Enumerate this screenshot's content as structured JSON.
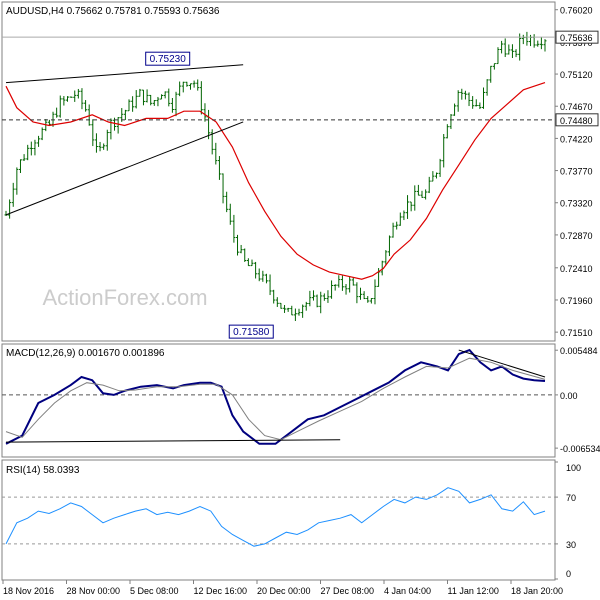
{
  "chart_data": [
    {
      "type": "candlestick",
      "panel": "price",
      "title": "AUDUSD,H4  0.75662 0.75781 0.75593 0.75636",
      "watermark": "ActionForex.com",
      "ylim": [
        0.714,
        0.761
      ],
      "y_ticks": [
        {
          "value": 0.7602,
          "label": "0.76020"
        },
        {
          "value": 0.7557,
          "label": "0.75570"
        },
        {
          "value": 0.7512,
          "label": "0.75120"
        },
        {
          "value": 0.7467,
          "label": "0.74670"
        },
        {
          "value": 0.7422,
          "label": "0.74220"
        },
        {
          "value": 0.7377,
          "label": "0.73770"
        },
        {
          "value": 0.7332,
          "label": "0.73320"
        },
        {
          "value": 0.7287,
          "label": "0.72870"
        },
        {
          "value": 0.7241,
          "label": "0.72410"
        },
        {
          "value": 0.7196,
          "label": "0.71960"
        },
        {
          "value": 0.7151,
          "label": "0.71510"
        }
      ],
      "current_price": {
        "value": 0.75636,
        "label": "0.75636"
      },
      "hline": {
        "value": 0.7448,
        "label": "0.74480",
        "style": "dashed"
      },
      "annotations": [
        {
          "label": "0.75230",
          "x": 0.3,
          "y": 0.7523
        },
        {
          "label": "0.71580",
          "x": 0.455,
          "y": 0.7158
        }
      ],
      "close_path": [
        [
          0.0,
          0.7315
        ],
        [
          0.02,
          0.738
        ],
        [
          0.05,
          0.742
        ],
        [
          0.08,
          0.744
        ],
        [
          0.1,
          0.747
        ],
        [
          0.13,
          0.7485
        ],
        [
          0.15,
          0.746
        ],
        [
          0.17,
          0.7395
        ],
        [
          0.19,
          0.744
        ],
        [
          0.22,
          0.746
        ],
        [
          0.25,
          0.7485
        ],
        [
          0.27,
          0.747
        ],
        [
          0.29,
          0.749
        ],
        [
          0.31,
          0.747
        ],
        [
          0.33,
          0.7505
        ],
        [
          0.35,
          0.75
        ],
        [
          0.37,
          0.745
        ],
        [
          0.385,
          0.74
        ],
        [
          0.4,
          0.735
        ],
        [
          0.42,
          0.729
        ],
        [
          0.44,
          0.725
        ],
        [
          0.47,
          0.723
        ],
        [
          0.5,
          0.72
        ],
        [
          0.52,
          0.7175
        ],
        [
          0.55,
          0.719
        ],
        [
          0.58,
          0.7195
        ],
        [
          0.61,
          0.7215
        ],
        [
          0.64,
          0.722
        ],
        [
          0.67,
          0.7185
        ],
        [
          0.69,
          0.723
        ],
        [
          0.71,
          0.728
        ],
        [
          0.73,
          0.732
        ],
        [
          0.76,
          0.734
        ],
        [
          0.78,
          0.7345
        ],
        [
          0.8,
          0.738
        ],
        [
          0.82,
          0.745
        ],
        [
          0.84,
          0.749
        ],
        [
          0.86,
          0.7475
        ],
        [
          0.88,
          0.7465
        ],
        [
          0.9,
          0.752
        ],
        [
          0.92,
          0.7555
        ],
        [
          0.94,
          0.7535
        ],
        [
          0.96,
          0.7565
        ],
        [
          0.98,
          0.756
        ],
        [
          1.0,
          0.7563
        ]
      ],
      "moving_average": {
        "color": "#dd0000",
        "points": [
          [
            0.0,
            0.7495
          ],
          [
            0.02,
            0.7465
          ],
          [
            0.05,
            0.7445
          ],
          [
            0.08,
            0.744
          ],
          [
            0.12,
            0.7445
          ],
          [
            0.16,
            0.7455
          ],
          [
            0.19,
            0.7445
          ],
          [
            0.22,
            0.744
          ],
          [
            0.26,
            0.745
          ],
          [
            0.3,
            0.745
          ],
          [
            0.33,
            0.746
          ],
          [
            0.36,
            0.746
          ],
          [
            0.39,
            0.7445
          ],
          [
            0.42,
            0.741
          ],
          [
            0.45,
            0.736
          ],
          [
            0.48,
            0.732
          ],
          [
            0.51,
            0.7285
          ],
          [
            0.54,
            0.726
          ],
          [
            0.57,
            0.7245
          ],
          [
            0.6,
            0.7235
          ],
          [
            0.63,
            0.723
          ],
          [
            0.66,
            0.7225
          ],
          [
            0.68,
            0.723
          ],
          [
            0.7,
            0.724
          ],
          [
            0.72,
            0.726
          ],
          [
            0.75,
            0.728
          ],
          [
            0.78,
            0.731
          ],
          [
            0.81,
            0.735
          ],
          [
            0.84,
            0.7385
          ],
          [
            0.87,
            0.742
          ],
          [
            0.9,
            0.745
          ],
          [
            0.93,
            0.747
          ],
          [
            0.96,
            0.749
          ],
          [
            1.0,
            0.75
          ]
        ]
      },
      "trendlines": [
        {
          "from": [
            0.0,
            0.75
          ],
          "to": [
            0.44,
            0.7525
          ]
        },
        {
          "from": [
            0.0,
            0.7315
          ],
          "to": [
            0.44,
            0.7445
          ]
        }
      ]
    },
    {
      "type": "line",
      "panel": "macd",
      "title": "MACD(12,26,9) 0.001670 0.001896",
      "ylim": [
        -0.0075,
        0.006
      ],
      "y_ticks": [
        {
          "value": 0.005484,
          "label": "0.005484"
        },
        {
          "value": 0.0,
          "label": "0.00"
        },
        {
          "value": -0.006534,
          "label": "-0.006534"
        }
      ],
      "zero_line": {
        "value": 0.0,
        "style": "dashed"
      },
      "series": [
        {
          "color": "#00007f",
          "points": [
            [
              0.0,
              -0.006
            ],
            [
              0.03,
              -0.005
            ],
            [
              0.06,
              -0.001
            ],
            [
              0.09,
              0.0
            ],
            [
              0.12,
              0.0012
            ],
            [
              0.14,
              0.0022
            ],
            [
              0.16,
              0.0018
            ],
            [
              0.18,
              0.0002
            ],
            [
              0.2,
              0.0
            ],
            [
              0.22,
              0.0005
            ],
            [
              0.25,
              0.001
            ],
            [
              0.28,
              0.0012
            ],
            [
              0.31,
              0.0008
            ],
            [
              0.33,
              0.0012
            ],
            [
              0.36,
              0.0015
            ],
            [
              0.38,
              0.0015
            ],
            [
              0.4,
              0.001
            ],
            [
              0.42,
              -0.0025
            ],
            [
              0.44,
              -0.0045
            ],
            [
              0.47,
              -0.006
            ],
            [
              0.5,
              -0.006
            ],
            [
              0.53,
              -0.0045
            ],
            [
              0.56,
              -0.003
            ],
            [
              0.59,
              -0.0025
            ],
            [
              0.62,
              -0.0015
            ],
            [
              0.65,
              -0.0005
            ],
            [
              0.68,
              0.0005
            ],
            [
              0.71,
              0.0015
            ],
            [
              0.74,
              0.003
            ],
            [
              0.77,
              0.004
            ],
            [
              0.8,
              0.0035
            ],
            [
              0.82,
              0.003
            ],
            [
              0.84,
              0.005
            ],
            [
              0.86,
              0.0055
            ],
            [
              0.88,
              0.004
            ],
            [
              0.9,
              0.003
            ],
            [
              0.92,
              0.0035
            ],
            [
              0.94,
              0.0025
            ],
            [
              0.96,
              0.002
            ],
            [
              0.98,
              0.0018
            ],
            [
              1.0,
              0.0017
            ]
          ]
        },
        {
          "color": "#808080",
          "points": [
            [
              0.0,
              -0.0045
            ],
            [
              0.03,
              -0.0052
            ],
            [
              0.06,
              -0.003
            ],
            [
              0.09,
              -0.001
            ],
            [
              0.12,
              0.0005
            ],
            [
              0.15,
              0.0015
            ],
            [
              0.18,
              0.0012
            ],
            [
              0.21,
              0.0005
            ],
            [
              0.24,
              0.0006
            ],
            [
              0.28,
              0.001
            ],
            [
              0.32,
              0.001
            ],
            [
              0.36,
              0.0013
            ],
            [
              0.39,
              0.0013
            ],
            [
              0.42,
              0.0
            ],
            [
              0.45,
              -0.003
            ],
            [
              0.48,
              -0.005
            ],
            [
              0.51,
              -0.0055
            ],
            [
              0.54,
              -0.0045
            ],
            [
              0.58,
              -0.0032
            ],
            [
              0.62,
              -0.002
            ],
            [
              0.66,
              -0.0008
            ],
            [
              0.7,
              0.0008
            ],
            [
              0.74,
              0.0022
            ],
            [
              0.78,
              0.0035
            ],
            [
              0.82,
              0.0033
            ],
            [
              0.86,
              0.0045
            ],
            [
              0.9,
              0.004
            ],
            [
              0.94,
              0.003
            ],
            [
              1.0,
              0.0019
            ]
          ]
        }
      ],
      "trendlines": [
        {
          "from": [
            0.0,
            -0.0058
          ],
          "to": [
            0.62,
            -0.0055
          ]
        },
        {
          "from": [
            0.84,
            0.0055
          ],
          "to": [
            1.0,
            0.0022
          ]
        }
      ]
    },
    {
      "type": "line",
      "panel": "rsi",
      "title": "RSI(14) 58.0393",
      "ylim": [
        0,
        100
      ],
      "y_ticks": [
        {
          "value": 100,
          "label": "100"
        },
        {
          "value": 70,
          "label": "70"
        },
        {
          "value": 30,
          "label": "30"
        },
        {
          "value": 0,
          "label": "0"
        }
      ],
      "levels": [
        70,
        30
      ],
      "series": [
        {
          "color": "#1e90ff",
          "points": [
            [
              0.0,
              30
            ],
            [
              0.02,
              48
            ],
            [
              0.04,
              52
            ],
            [
              0.06,
              58
            ],
            [
              0.08,
              56
            ],
            [
              0.1,
              60
            ],
            [
              0.12,
              65
            ],
            [
              0.14,
              62
            ],
            [
              0.16,
              55
            ],
            [
              0.18,
              48
            ],
            [
              0.2,
              52
            ],
            [
              0.22,
              55
            ],
            [
              0.24,
              58
            ],
            [
              0.26,
              60
            ],
            [
              0.28,
              55
            ],
            [
              0.3,
              57
            ],
            [
              0.32,
              55
            ],
            [
              0.34,
              58
            ],
            [
              0.36,
              62
            ],
            [
              0.38,
              58
            ],
            [
              0.4,
              45
            ],
            [
              0.42,
              38
            ],
            [
              0.44,
              33
            ],
            [
              0.46,
              28
            ],
            [
              0.48,
              30
            ],
            [
              0.5,
              35
            ],
            [
              0.52,
              40
            ],
            [
              0.54,
              38
            ],
            [
              0.56,
              42
            ],
            [
              0.58,
              48
            ],
            [
              0.6,
              50
            ],
            [
              0.62,
              52
            ],
            [
              0.64,
              55
            ],
            [
              0.66,
              48
            ],
            [
              0.68,
              55
            ],
            [
              0.7,
              62
            ],
            [
              0.72,
              68
            ],
            [
              0.74,
              65
            ],
            [
              0.76,
              70
            ],
            [
              0.78,
              68
            ],
            [
              0.8,
              72
            ],
            [
              0.82,
              78
            ],
            [
              0.84,
              75
            ],
            [
              0.86,
              65
            ],
            [
              0.88,
              68
            ],
            [
              0.9,
              72
            ],
            [
              0.92,
              60
            ],
            [
              0.94,
              58
            ],
            [
              0.96,
              66
            ],
            [
              0.98,
              55
            ],
            [
              1.0,
              58
            ]
          ]
        }
      ]
    }
  ],
  "x_axis": {
    "labels": [
      "18 Nov 2016",
      "28 Nov 00:00",
      "5 Dec 08:00",
      "12 Dec 16:00",
      "20 Dec 00:00",
      "27 Dec 08:00",
      "4 Jan 04:00",
      "11 Jan 12:00",
      "18 Jan 20:00"
    ]
  },
  "colors": {
    "price_bars": "#006400",
    "border": "#808080",
    "grid": "#c0c0c0"
  }
}
